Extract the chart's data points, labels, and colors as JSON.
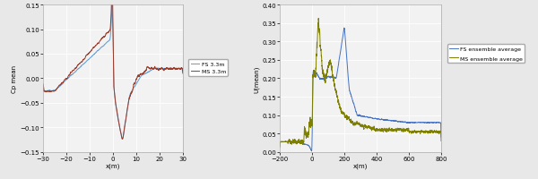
{
  "left": {
    "xlim": [
      -30,
      30
    ],
    "ylim": [
      -0.15,
      0.15
    ],
    "xticks": [
      -30,
      -20,
      -10,
      0,
      10,
      20,
      30
    ],
    "yticks": [
      -0.15,
      -0.1,
      -0.05,
      0,
      0.05,
      0.1,
      0.15
    ],
    "xlabel": "x(m)",
    "ylabel": "Cp mean",
    "fs_color": "#5B9BD5",
    "ms_color": "#9E3A26",
    "fs_label": "FS 3.3m",
    "ms_label": "MS 3.3m"
  },
  "right": {
    "xlim": [
      -200,
      800
    ],
    "ylim": [
      0,
      0.4
    ],
    "xticks": [
      -200,
      0,
      200,
      400,
      600,
      800
    ],
    "yticks": [
      0,
      0.05,
      0.1,
      0.15,
      0.2,
      0.25,
      0.3,
      0.35,
      0.4
    ],
    "xlabel": "x(m)",
    "ylabel": "U(mean)",
    "fs_color": "#4472C4",
    "ms_color": "#7F7F00",
    "fs_label": "FS ensemble average",
    "ms_label": "MS ensemble average"
  },
  "bg_color": "#E8E8E8",
  "plot_bg": "#F2F2F2",
  "grid_color": "#FFFFFF"
}
